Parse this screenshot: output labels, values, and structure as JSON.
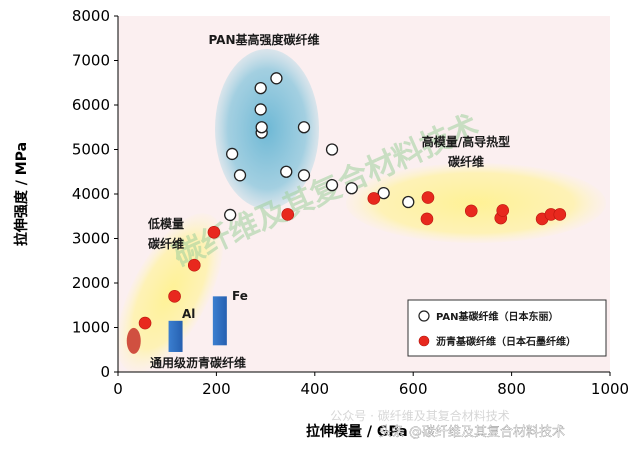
{
  "chart_data": {
    "type": "scatter",
    "title": "",
    "xlabel": "拉伸模量 / GPa",
    "ylabel": "拉伸强度 / MPa",
    "xlim": [
      0,
      1000
    ],
    "ylim": [
      0,
      8000
    ],
    "x_ticks": [
      0,
      200,
      400,
      600,
      800,
      1000
    ],
    "y_ticks": [
      0,
      1000,
      2000,
      3000,
      4000,
      5000,
      6000,
      7000,
      8000
    ],
    "x_tick_labels": [
      "0",
      "200",
      "400",
      "600",
      "800",
      "1000"
    ],
    "y_tick_labels": [
      "0",
      "1000",
      "2000",
      "3000",
      "4000",
      "5000",
      "6000",
      "7000",
      "8000"
    ],
    "grid": false,
    "legend_position": "bottom-right",
    "series": [
      {
        "name": "PAN基碳纤维（日本东丽）",
        "marker": "open-circle",
        "color": "#ffffff",
        "points": [
          [
            228,
            3530
          ],
          [
            232,
            4900
          ],
          [
            248,
            4420
          ],
          [
            290,
            6380
          ],
          [
            290,
            5900
          ],
          [
            292,
            5380
          ],
          [
            292,
            5500
          ],
          [
            322,
            6600
          ],
          [
            342,
            4500
          ],
          [
            378,
            5500
          ],
          [
            378,
            4420
          ],
          [
            435,
            5000
          ],
          [
            435,
            4200
          ],
          [
            475,
            4130
          ],
          [
            540,
            4020
          ],
          [
            590,
            3820
          ]
        ]
      },
      {
        "name": "沥青基碳纤维（日本石墨纤维）",
        "marker": "filled-circle",
        "color": "#e8281e",
        "points": [
          [
            55,
            1100
          ],
          [
            115,
            1700
          ],
          [
            155,
            2400
          ],
          [
            195,
            3140
          ],
          [
            345,
            3540
          ],
          [
            520,
            3900
          ],
          [
            630,
            3920
          ],
          [
            628,
            3440
          ],
          [
            718,
            3620
          ],
          [
            778,
            3460
          ],
          [
            782,
            3630
          ],
          [
            862,
            3440
          ],
          [
            880,
            3540
          ],
          [
            898,
            3540
          ]
        ]
      }
    ],
    "region_labels": {
      "pan_high_strength": "PAN基高强度碳纤维",
      "high_modulus_line1": "高模量/高导热型",
      "high_modulus_line2": "碳纤维",
      "low_modulus_line1": "低模量",
      "low_modulus_line2": "碳纤维",
      "general_pitch": "通用级沥青碳纤维"
    },
    "element_labels": {
      "al": "Al",
      "fe": "Fe"
    },
    "element_values": {
      "al": {
        "modulus": 117,
        "strength_range": [
          450,
          1150
        ]
      },
      "fe": {
        "modulus": 207,
        "strength_range": [
          600,
          1700
        ]
      }
    },
    "general_pitch_point": {
      "x": 32,
      "y": 700
    },
    "colors": {
      "plot_background": "#fbeff0",
      "pan_region": "#7ec4dc",
      "high_modulus_region": "#fff199",
      "low_modulus_region": "#fff199",
      "metal_bar": "#2f70c0",
      "general_pitch_marker": "#d05040",
      "label_text": "#1a1a1a",
      "axis": "#000000"
    }
  },
  "watermark": {
    "diagonal_text": "碳纤维及其复合材料技术",
    "bottom_text": "头条 @碳纤维及其复合材料技术",
    "bottom_faded_text": "公众号 · 碳纤维及其复合材料技术"
  }
}
